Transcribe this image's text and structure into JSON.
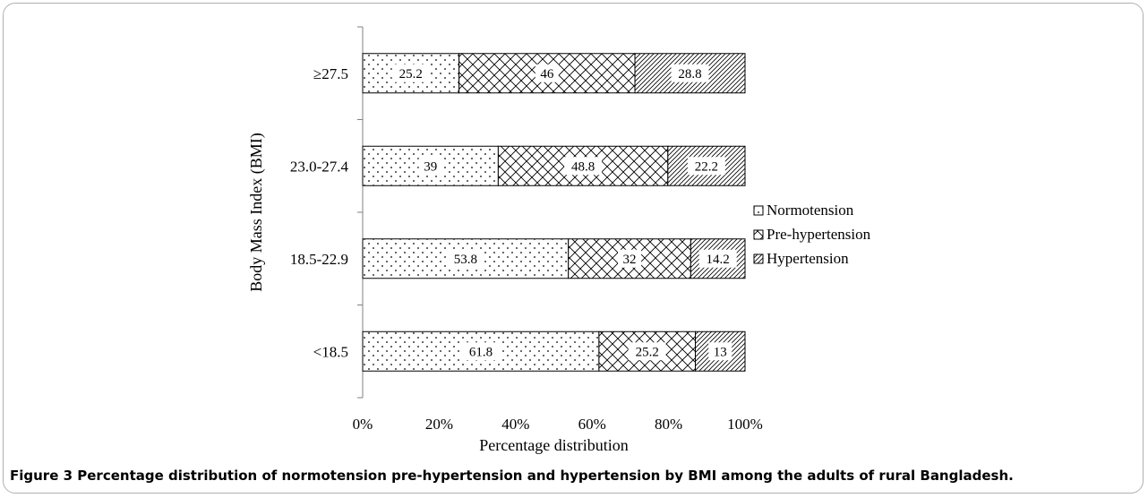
{
  "figure": {
    "caption": "Figure 3 Percentage distribution of normotension pre-hypertension and hypertension by BMI among the adults of rural Bangladesh."
  },
  "chart_data": {
    "type": "bar",
    "orientation": "horizontal",
    "stacked": "percent",
    "categories": [
      "≥27.5",
      "23.0-27.4",
      "18.5-22.9",
      "<18.5"
    ],
    "series": [
      {
        "name": "Normotension",
        "values": [
          25.2,
          39,
          53.8,
          61.8
        ],
        "pattern": "dots"
      },
      {
        "name": "Pre-hypertension",
        "values": [
          46,
          48.8,
          32,
          25.2
        ],
        "pattern": "crosshatch"
      },
      {
        "name": "Hypertension",
        "values": [
          28.8,
          22.2,
          14.2,
          13
        ],
        "pattern": "diagonal"
      }
    ],
    "xlabel": "Percentage distribution",
    "ylabel": "Body Mass Index (BMI)",
    "xlim": [
      0,
      100
    ],
    "xticks": [
      "0%",
      "20%",
      "40%",
      "60%",
      "80%",
      "100%"
    ],
    "grid": false,
    "legend_position": "right"
  }
}
